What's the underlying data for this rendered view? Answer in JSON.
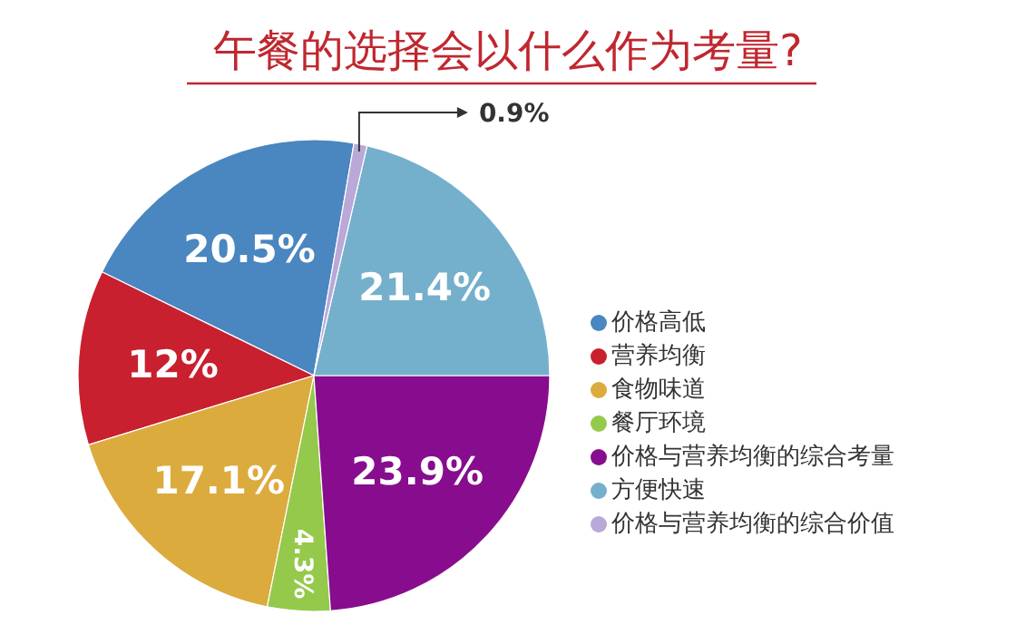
{
  "chart_data": {
    "type": "pie",
    "title": "午餐的选择会以什么作为考量?",
    "categories": [
      "价格高低",
      "营养均衡",
      "食物味道",
      "餐厅环境",
      "价格与营养均衡的综合考量",
      "方便快速",
      "价格与营养均衡的综合价值"
    ],
    "values": [
      20.5,
      12,
      17.1,
      4.3,
      23.9,
      21.4,
      0.9
    ],
    "colors": [
      "#4a86c0",
      "#c8202f",
      "#dcab3e",
      "#95c94b",
      "#870d8e",
      "#74b0cb",
      "#b9a8d8"
    ],
    "value_labels": [
      "20.5%",
      "12%",
      "17.1%",
      "4.3%",
      "23.9%",
      "21.4%",
      "0.9%"
    ],
    "legend": "right"
  }
}
